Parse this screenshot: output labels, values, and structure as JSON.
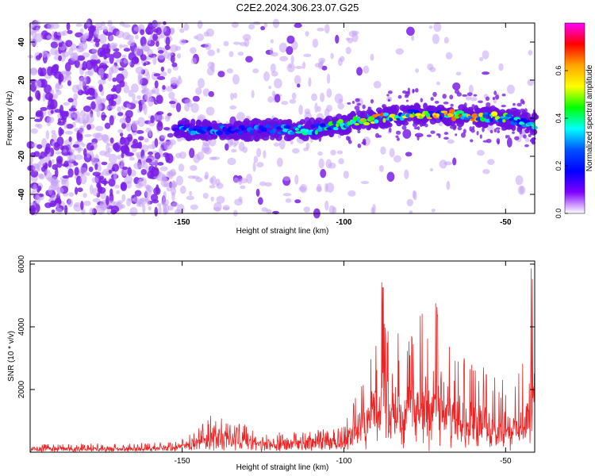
{
  "title": "C2E2.2024.306.23.07.G25",
  "chart_data": [
    {
      "type": "heatmap",
      "xlabel": "Height of straight line (km)",
      "ylabel": "Frequency (Hz)",
      "colorbar_label": "Normalized spectral amplitude",
      "xlim": [
        -197,
        -41
      ],
      "ylim": [
        -50,
        50
      ],
      "xticks": [
        -150,
        -100,
        -50
      ],
      "yticks": [
        -40,
        -20,
        0,
        20,
        40
      ],
      "colorbar_ticks": [
        0.0,
        0.2,
        0.4,
        0.6
      ],
      "colorbar_range": [
        0,
        0.8
      ],
      "colormap": [
        "#ff00ff",
        "#ff0000",
        "#ffa500",
        "#ffff00",
        "#00ff00",
        "#00ffff",
        "#0050ff",
        "#0000ff",
        "#8000ff",
        "#ffffff"
      ],
      "signal_band": {
        "x": [
          -152,
          -140,
          -130,
          -120,
          -110,
          -100,
          -90,
          -80,
          -70,
          -60,
          -50,
          -41
        ],
        "center_freq": [
          -6,
          -6,
          -6,
          -6,
          -6,
          -3,
          0,
          2,
          2,
          1,
          0,
          -3
        ],
        "peak_amplitude": [
          0.35,
          0.35,
          0.3,
          0.35,
          0.45,
          0.5,
          0.7,
          0.6,
          0.65,
          0.7,
          0.5,
          0.4
        ]
      },
      "noise_regions": [
        {
          "x_range": [
            -197,
            -152
          ],
          "density": "high"
        },
        {
          "x_range": [
            -152,
            -100
          ],
          "density": "low"
        },
        {
          "x_range": [
            -100,
            -41
          ],
          "density": "very low"
        }
      ]
    },
    {
      "type": "line",
      "xlabel": "Height of straight line (km)",
      "ylabel": "SNR (10 * v/v)",
      "xlim": [
        -197,
        -41
      ],
      "ylim": [
        0,
        6100
      ],
      "xticks": [
        -150,
        -100,
        -50
      ],
      "yticks": [
        2000,
        4000,
        6000
      ],
      "color": "#ee2222",
      "envelope": {
        "x": [
          -197,
          -160,
          -152,
          -145,
          -142,
          -140,
          -137,
          -135,
          -132,
          -130,
          -125,
          -120,
          -115,
          -110,
          -105,
          -100,
          -97,
          -95,
          -92,
          -90,
          -88,
          -86,
          -84,
          -82,
          -80,
          -78,
          -76,
          -74,
          -72,
          -70,
          -68,
          -65,
          -62,
          -60,
          -58,
          -55,
          -52,
          -50,
          -48,
          -46,
          -44,
          -43,
          -42,
          -41
        ],
        "base": [
          120,
          120,
          150,
          350,
          500,
          650,
          500,
          600,
          650,
          400,
          300,
          320,
          330,
          350,
          380,
          420,
          600,
          900,
          1100,
          1300,
          1500,
          1400,
          1500,
          1350,
          1200,
          1300,
          1400,
          1500,
          1350,
          1400,
          1200,
          1100,
          1000,
          900,
          800,
          700,
          650,
          700,
          650,
          800,
          900,
          1000,
          1100,
          1200
        ],
        "peak": [
          250,
          300,
          350,
          800,
          1100,
          1350,
          1000,
          1200,
          1250,
          800,
          600,
          650,
          650,
          700,
          750,
          800,
          1800,
          2600,
          3500,
          4500,
          5700,
          4200,
          3800,
          4000,
          3600,
          4000,
          4500,
          4800,
          4950,
          4500,
          3800,
          3900,
          3500,
          3300,
          3000,
          2600,
          2400,
          2500,
          2300,
          2500,
          3500,
          5000,
          6000,
          5500
        ]
      }
    }
  ]
}
